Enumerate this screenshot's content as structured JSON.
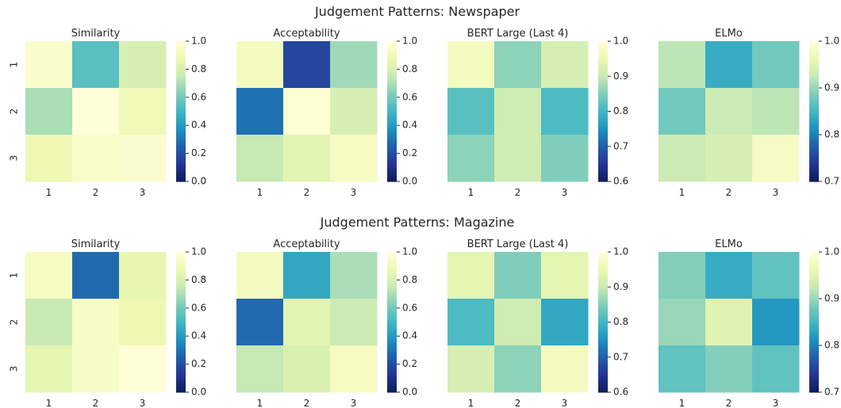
{
  "figure": {
    "row_titles": [
      "Judgement Patterns: Newspaper",
      "Judgement Patterns: Magazine"
    ],
    "colormap": [
      "#081d58",
      "#253494",
      "#225ea8",
      "#1d91c0",
      "#41b6c4",
      "#7fcdbb",
      "#c7e9b4",
      "#edf8b1",
      "#ffffd9"
    ]
  },
  "chart_data": [
    {
      "type": "heatmap",
      "group": "Judgement Patterns: Newspaper",
      "title": "Similarity",
      "x_labels": [
        "1",
        "2",
        "3"
      ],
      "y_labels": [
        "1",
        "2",
        "3"
      ],
      "vmin": 0.0,
      "vmax": 1.0,
      "colorbar_ticks": [
        "0.0",
        "0.2",
        "0.4",
        "0.6",
        "0.8",
        "1.0"
      ],
      "values": [
        [
          0.96,
          0.55,
          0.8
        ],
        [
          0.7,
          1.0,
          0.9
        ],
        [
          0.88,
          0.95,
          0.97
        ]
      ]
    },
    {
      "type": "heatmap",
      "group": "Judgement Patterns: Newspaper",
      "title": "Acceptability",
      "x_labels": [
        "1",
        "2",
        "3"
      ],
      "y_labels": [
        "1",
        "2",
        "3"
      ],
      "vmin": 0.0,
      "vmax": 1.0,
      "colorbar_ticks": [
        "0.0",
        "0.2",
        "0.4",
        "0.6",
        "0.8",
        "1.0"
      ],
      "values": [
        [
          0.92,
          0.18,
          0.68
        ],
        [
          0.3,
          0.98,
          0.8
        ],
        [
          0.75,
          0.84,
          0.93
        ]
      ]
    },
    {
      "type": "heatmap",
      "group": "Judgement Patterns: Newspaper",
      "title": "BERT Large (Last 4)",
      "x_labels": [
        "1",
        "2",
        "3"
      ],
      "y_labels": [
        "1",
        "2",
        "3"
      ],
      "vmin": 0.6,
      "vmax": 1.0,
      "colorbar_ticks": [
        "0.6",
        "0.7",
        "0.8",
        "0.9",
        "1.0"
      ],
      "values": [
        [
          0.97,
          0.86,
          0.92
        ],
        [
          0.82,
          0.91,
          0.81
        ],
        [
          0.86,
          0.91,
          0.85
        ]
      ]
    },
    {
      "type": "heatmap",
      "group": "Judgement Patterns: Newspaper",
      "title": "ELMo",
      "x_labels": [
        "1",
        "2",
        "3"
      ],
      "y_labels": [
        "1",
        "2",
        "3"
      ],
      "vmin": 0.7,
      "vmax": 1.0,
      "colorbar_ticks": [
        "0.7",
        "0.8",
        "0.9",
        "1.0"
      ],
      "values": [
        [
          0.92,
          0.84,
          0.88
        ],
        [
          0.88,
          0.93,
          0.92
        ],
        [
          0.93,
          0.94,
          0.98
        ]
      ]
    },
    {
      "type": "heatmap",
      "group": "Judgement Patterns: Magazine",
      "title": "Similarity",
      "x_labels": [
        "1",
        "2",
        "3"
      ],
      "y_labels": [
        "1",
        "2",
        "3"
      ],
      "vmin": 0.0,
      "vmax": 1.0,
      "colorbar_ticks": [
        "0.0",
        "0.2",
        "0.4",
        "0.6",
        "0.8",
        "1.0"
      ],
      "values": [
        [
          0.93,
          0.28,
          0.86
        ],
        [
          0.76,
          0.94,
          0.88
        ],
        [
          0.85,
          0.94,
          0.99
        ]
      ]
    },
    {
      "type": "heatmap",
      "group": "Judgement Patterns: Magazine",
      "title": "Acceptability",
      "x_labels": [
        "1",
        "2",
        "3"
      ],
      "y_labels": [
        "1",
        "2",
        "3"
      ],
      "vmin": 0.0,
      "vmax": 1.0,
      "colorbar_ticks": [
        "0.0",
        "0.2",
        "0.4",
        "0.6",
        "0.8",
        "1.0"
      ],
      "values": [
        [
          0.92,
          0.45,
          0.7
        ],
        [
          0.28,
          0.84,
          0.77
        ],
        [
          0.75,
          0.81,
          0.93
        ]
      ]
    },
    {
      "type": "heatmap",
      "group": "Judgement Patterns: Magazine",
      "title": "BERT Large (Last 4)",
      "x_labels": [
        "1",
        "2",
        "3"
      ],
      "y_labels": [
        "1",
        "2",
        "3"
      ],
      "vmin": 0.6,
      "vmax": 1.0,
      "colorbar_ticks": [
        "0.6",
        "0.7",
        "0.8",
        "0.9",
        "1.0"
      ],
      "values": [
        [
          0.94,
          0.85,
          0.94
        ],
        [
          0.81,
          0.91,
          0.78
        ],
        [
          0.92,
          0.86,
          0.97
        ]
      ]
    },
    {
      "type": "heatmap",
      "group": "Judgement Patterns: Magazine",
      "title": "ELMo",
      "x_labels": [
        "1",
        "2",
        "3"
      ],
      "y_labels": [
        "1",
        "2",
        "3"
      ],
      "vmin": 0.7,
      "vmax": 1.0,
      "colorbar_ticks": [
        "0.7",
        "0.8",
        "0.9",
        "1.0"
      ],
      "values": [
        [
          0.89,
          0.84,
          0.87
        ],
        [
          0.9,
          0.95,
          0.82
        ],
        [
          0.87,
          0.89,
          0.87
        ]
      ]
    }
  ]
}
